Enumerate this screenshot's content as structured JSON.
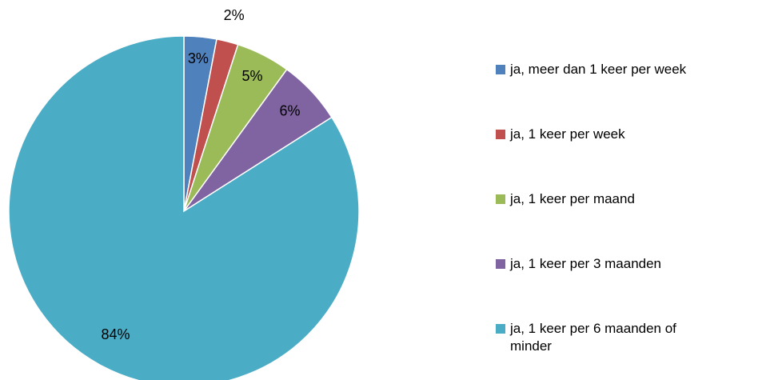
{
  "chart_data": {
    "type": "pie",
    "categories": [
      "ja, meer dan 1 keer per week",
      "ja, 1 keer per week",
      "ja, 1 keer per maand",
      "ja, 1 keer per 3 maanden",
      "ja, 1 keer per 6 maanden of minder"
    ],
    "values": [
      3,
      2,
      5,
      6,
      84
    ],
    "value_labels": [
      "3%",
      "2%",
      "5%",
      "6%",
      "84%"
    ],
    "colors": [
      "#4f81bd",
      "#c0504d",
      "#9bbb59",
      "#8064a2",
      "#4bacc6"
    ],
    "legend": "right"
  }
}
